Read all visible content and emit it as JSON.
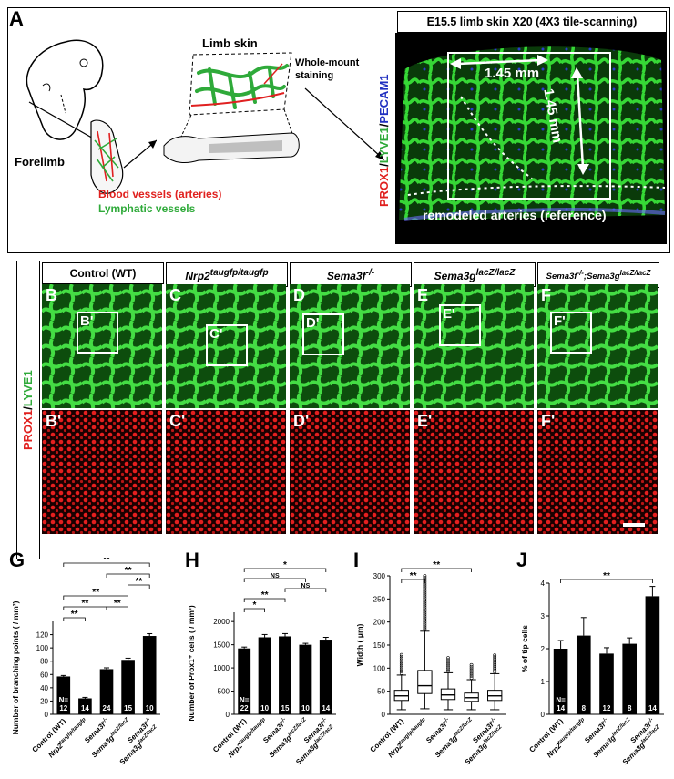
{
  "panel_letters": {
    "A": "A",
    "G": "G",
    "H": "H",
    "I": "I",
    "J": "J"
  },
  "panelA": {
    "limb_skin": "Limb skin",
    "whole_mount": "Whole-mount",
    "staining": "staining",
    "forelimb": "Forelimb",
    "blood_vessels": "Blood vessels (arteries)",
    "lymphatic_vessels": "Lymphatic vessels",
    "tile_title": "E15.5 limb skin X20 (4X3 tile-scanning)",
    "stain_prox1": "PROX1",
    "stain_sep1": "/",
    "stain_lyve1": "LYVE1",
    "stain_sep2": "/",
    "stain_pecam1": "PECAM1",
    "dim_h": "1.45 mm",
    "dim_v": "1.45 mm",
    "remodeled": "remodeled arteries (reference)"
  },
  "genotypes": [
    {
      "label": "Control (WT)",
      "sup": ""
    },
    {
      "label": "Nrp2",
      "sup": "taugfp/taugfp"
    },
    {
      "label": "Sema3f",
      "sup": "-/-"
    },
    {
      "label": "Sema3g",
      "sup": "lacZ/lacZ"
    },
    {
      "label": "Sema3f",
      "sup": "-/-",
      "label2": ";Sema3g",
      "sup2": "lacZ/lacZ"
    }
  ],
  "micro_rows": {
    "row1_label_prox1": "PROX1",
    "row1_label_sep": "/",
    "row1_label_lyve1": "LYVE1",
    "top_letters": [
      "B",
      "C",
      "D",
      "E",
      "F"
    ],
    "inset_letters": [
      "B'",
      "C'",
      "D'",
      "E'",
      "F'"
    ],
    "bottom_letters": [
      "B'",
      "C'",
      "D'",
      "E'",
      "F'"
    ]
  },
  "x_labels": [
    {
      "text": "Control (WT)",
      "sup": ""
    },
    {
      "text": "Nrp2",
      "sup": "taugfp/taugfp"
    },
    {
      "text": "Sema3f",
      "sup": "-/-"
    },
    {
      "text": "Sema3g",
      "sup": "lacZ/lacZ"
    },
    {
      "text": "Sema3f",
      "sup": "-/-",
      "text2": "Sema3g",
      "sup2": "lacZ/lacZ"
    }
  ],
  "chart_data": [
    {
      "panel": "G",
      "type": "bar",
      "ylabel": "Number of branching points ( / mm²)",
      "ylim": [
        0,
        140
      ],
      "yticks": [
        0,
        20,
        40,
        60,
        80,
        100,
        120
      ],
      "categories": [
        "Control (WT)",
        "Nrp2 taugfp/taugfp",
        "Sema3f -/-",
        "Sema3g lacZ/lacZ",
        "Sema3f -/-; Sema3g lacZ/lacZ"
      ],
      "values": [
        57,
        24,
        68,
        82,
        118
      ],
      "errors": [
        1.5,
        1.5,
        2,
        2.5,
        3.5
      ],
      "n": [
        "N=\n12",
        "14",
        "24",
        "15",
        "10"
      ],
      "significance": [
        {
          "a": 0,
          "b": 1,
          "label": "**",
          "level": 1
        },
        {
          "a": 0,
          "b": 2,
          "label": "**",
          "level": 2
        },
        {
          "a": 2,
          "b": 3,
          "label": "**",
          "level": 2
        },
        {
          "a": 0,
          "b": 3,
          "label": "**",
          "level": 3
        },
        {
          "a": 3,
          "b": 4,
          "label": "**",
          "level": 4
        },
        {
          "a": 2,
          "b": 4,
          "label": "**",
          "level": 5
        },
        {
          "a": 0,
          "b": 4,
          "label": "**",
          "level": 6
        }
      ]
    },
    {
      "panel": "H",
      "type": "bar",
      "ylabel": "Number of Prox1⁺ cells ( / mm²)",
      "ylim": [
        0,
        2200
      ],
      "yticks": [
        0,
        500,
        1000,
        1500,
        2000
      ],
      "categories": [
        "Control (WT)",
        "Nrp2 taugfp/taugfp",
        "Sema3f -/-",
        "Sema3g lacZ/lacZ",
        "Sema3f -/-; Sema3g lacZ/lacZ"
      ],
      "values": [
        1420,
        1660,
        1680,
        1500,
        1610
      ],
      "errors": [
        30,
        60,
        60,
        30,
        50
      ],
      "n": [
        "N=\n22",
        "10",
        "15",
        "10",
        "14"
      ],
      "significance": [
        {
          "a": 0,
          "b": 1,
          "label": "*",
          "level": 1
        },
        {
          "a": 0,
          "b": 2,
          "label": "**",
          "level": 2
        },
        {
          "a": 2,
          "b": 4,
          "label": "NS",
          "level": 3
        },
        {
          "a": 0,
          "b": 3,
          "label": "NS",
          "level": 4
        },
        {
          "a": 0,
          "b": 4,
          "label": "*",
          "level": 5
        }
      ]
    },
    {
      "panel": "I",
      "type": "box",
      "ylabel": "Width ( μm)",
      "ylim": [
        0,
        300
      ],
      "yticks": [
        0,
        50,
        100,
        150,
        200,
        250,
        300
      ],
      "categories": [
        "Control (WT)",
        "Nrp2 taugfp/taugfp",
        "Sema3f -/-",
        "Sema3g lacZ/lacZ",
        "Sema3f -/-; Sema3g lacZ/lacZ"
      ],
      "boxes": [
        {
          "min": 10,
          "q1": 30,
          "median": 40,
          "q3": 52,
          "max": 85,
          "outlier_max": 130
        },
        {
          "min": 12,
          "q1": 45,
          "median": 62,
          "q3": 95,
          "max": 180,
          "outlier_max": 300
        },
        {
          "min": 10,
          "q1": 32,
          "median": 42,
          "q3": 55,
          "max": 90,
          "outlier_max": 125
        },
        {
          "min": 10,
          "q1": 28,
          "median": 36,
          "q3": 46,
          "max": 75,
          "outlier_max": 110
        },
        {
          "min": 10,
          "q1": 30,
          "median": 40,
          "q3": 52,
          "max": 88,
          "outlier_max": 130
        }
      ],
      "significance": [
        {
          "a": 0,
          "b": 1,
          "label": "**",
          "level": 1
        },
        {
          "a": 0,
          "b": 3,
          "label": "**",
          "level": 2
        }
      ]
    },
    {
      "panel": "J",
      "type": "bar",
      "ylabel": "% of tip cells",
      "ylim": [
        0,
        4
      ],
      "yticks": [
        0,
        1,
        2,
        3,
        4
      ],
      "categories": [
        "Control (WT)",
        "Nrp2 taugfp/taugfp",
        "Sema3f -/-",
        "Sema3g lacZ/lacZ",
        "Sema3f -/-; Sema3g lacZ/lacZ"
      ],
      "values": [
        2.0,
        2.4,
        1.85,
        2.15,
        3.6
      ],
      "errors": [
        0.25,
        0.55,
        0.18,
        0.18,
        0.3
      ],
      "n": [
        "N=\n14",
        "8",
        "12",
        "8",
        "14"
      ],
      "significance": [
        {
          "a": 0,
          "b": 4,
          "label": "**",
          "level": 1
        }
      ]
    }
  ]
}
